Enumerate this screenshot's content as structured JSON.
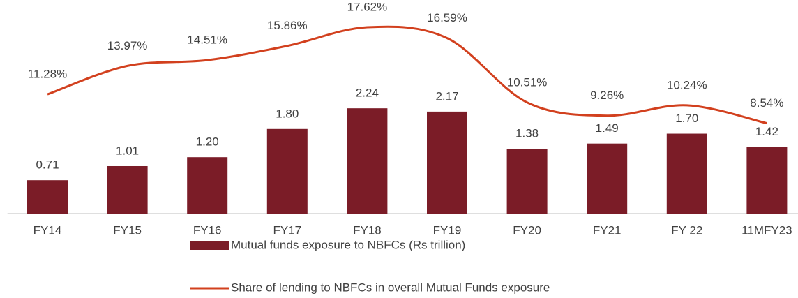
{
  "chart_data": {
    "type": "bar_line",
    "categories": [
      "FY14",
      "FY15",
      "FY16",
      "FY17",
      "FY18",
      "FY19",
      "FY20",
      "FY21",
      "FY 22",
      "11MFY23"
    ],
    "series": [
      {
        "name": "Mutual funds exposure to NBFCs (Rs trillion)",
        "type": "bar",
        "color": "#7b1c27",
        "values": [
          0.71,
          1.01,
          1.2,
          1.8,
          2.24,
          2.17,
          1.38,
          1.49,
          1.7,
          1.42
        ],
        "value_labels": [
          "0.71",
          "1.01",
          "1.20",
          "1.80",
          "2.24",
          "2.17",
          "1.38",
          "1.49",
          "1.70",
          "1.42"
        ]
      },
      {
        "name": "Share of lending to NBFCs in overall Mutual Funds exposure",
        "type": "line",
        "color": "#d2401e",
        "axis": "y2",
        "values": [
          11.28,
          13.97,
          14.51,
          15.86,
          17.62,
          16.59,
          10.51,
          9.26,
          10.24,
          8.54
        ],
        "value_labels": [
          "11.28%",
          "13.97%",
          "14.51%",
          "15.86%",
          "17.62%",
          "16.59%",
          "10.51%",
          "9.26%",
          "10.24%",
          "8.54%"
        ]
      }
    ],
    "ylim": [
      0,
      4.5
    ],
    "y2lim": [
      0,
      20
    ],
    "legend": "bottom"
  }
}
